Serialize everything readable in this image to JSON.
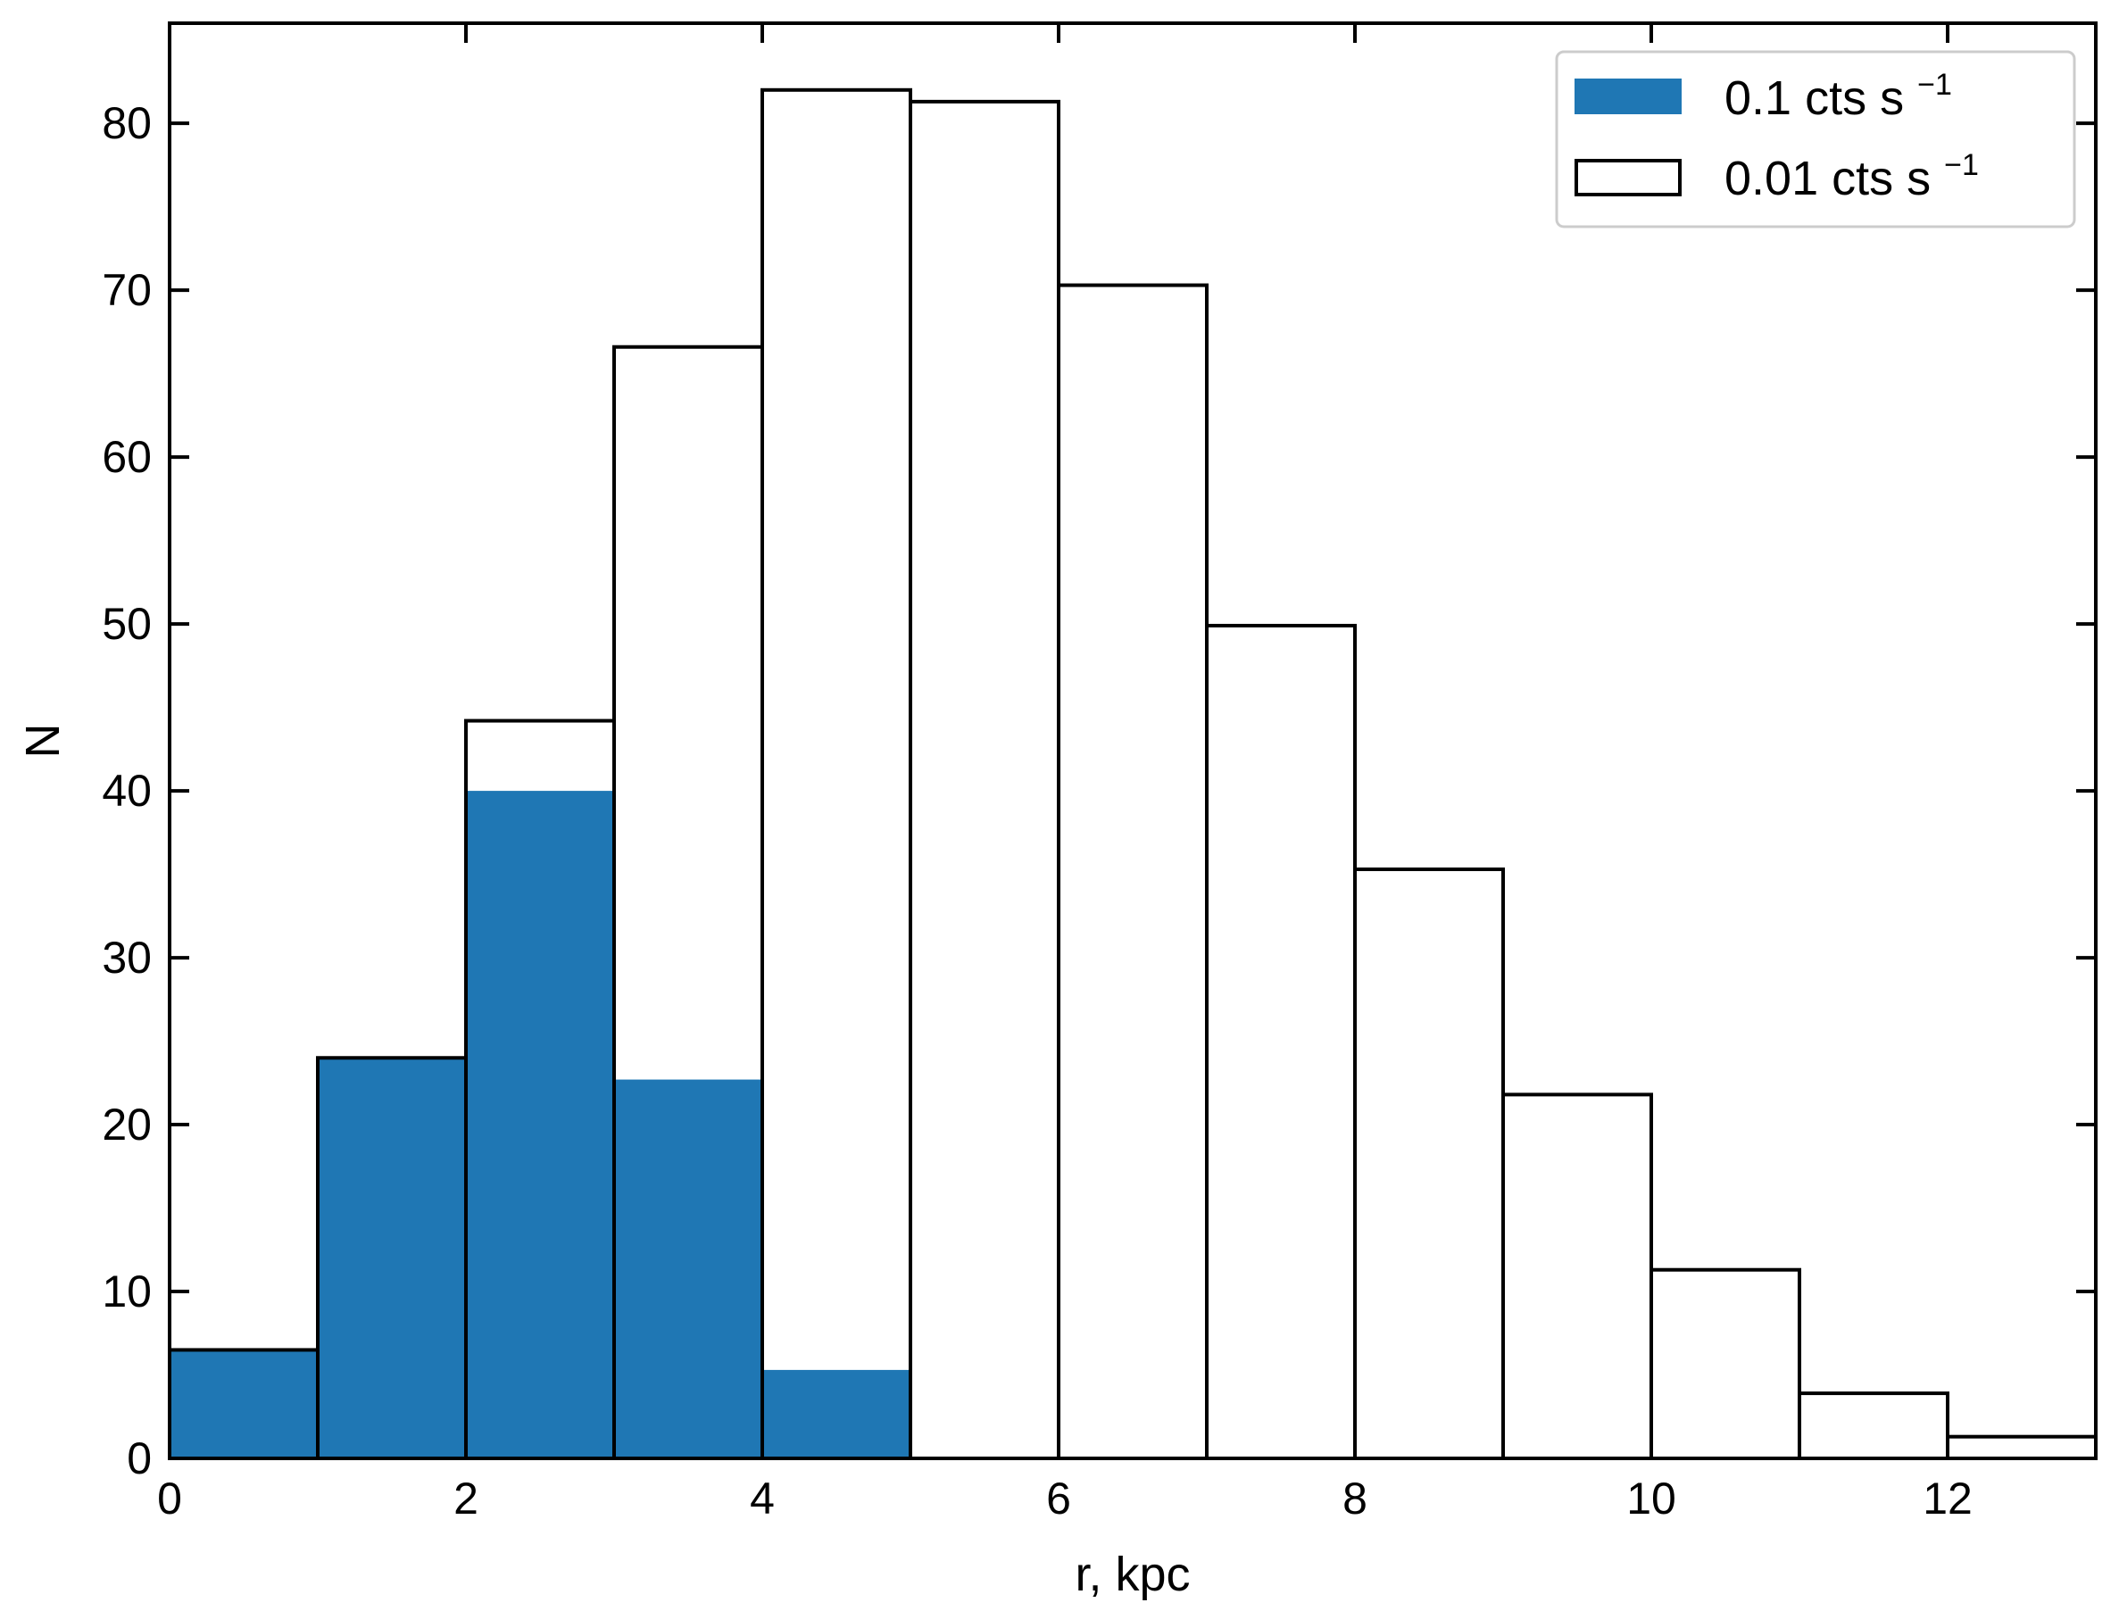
{
  "chart_data": {
    "type": "bar",
    "xlabel": "r, kpc",
    "ylabel": "N",
    "xlim": [
      0,
      13
    ],
    "ylim": [
      0,
      86
    ],
    "x_ticks": [
      0,
      2,
      4,
      6,
      8,
      10,
      12
    ],
    "y_ticks": [
      0,
      10,
      20,
      30,
      40,
      50,
      60,
      70,
      80
    ],
    "bin_edges": [
      0,
      1,
      2,
      3,
      4,
      5,
      6,
      7,
      8,
      9,
      10,
      11,
      12,
      13
    ],
    "grid": false,
    "legend_position": "top-right",
    "series": [
      {
        "name": "0.1 cts s",
        "name_superscript": "−1",
        "style": "filled",
        "color": "#1f77b4",
        "values": [
          6.5,
          24,
          40,
          22.7,
          5.3,
          0,
          0,
          0,
          0,
          0,
          0,
          0,
          0
        ]
      },
      {
        "name": "0.01 cts s",
        "name_superscript": "−1",
        "style": "step-outline",
        "color": "#000000",
        "values": [
          6.5,
          24,
          44.2,
          66.6,
          82,
          81.3,
          70.3,
          49.9,
          35.3,
          21.8,
          11.3,
          3.9,
          1.3
        ]
      }
    ]
  }
}
